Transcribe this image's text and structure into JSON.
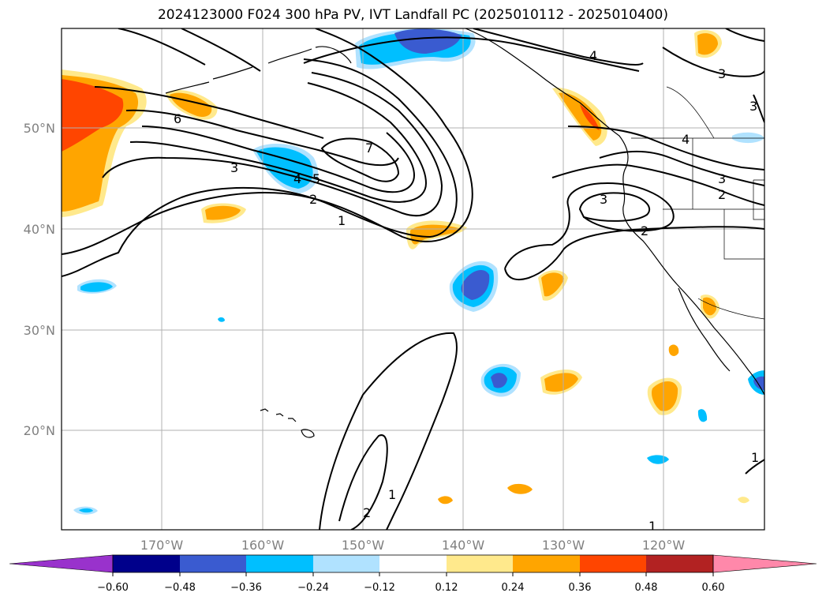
{
  "title": "2024123000 F024 300 hPa PV, IVT Landfall PC (2025010112 - 2025010400)",
  "axes": {
    "lon_labels": [
      "170°W",
      "160°W",
      "150°W",
      "140°W",
      "130°W",
      "120°W"
    ],
    "lat_labels": [
      "50°N",
      "40°N",
      "30°N",
      "20°N"
    ]
  },
  "colorbar": {
    "ticks": [
      "−0.60",
      "−0.48",
      "−0.36",
      "−0.24",
      "−0.12",
      "0.12",
      "0.24",
      "0.36",
      "0.48",
      "0.60"
    ],
    "colors": [
      "#9932cc",
      "#00008b",
      "#3a5bd0",
      "#00bfff",
      "#b0e2ff",
      "#ffffff",
      "#ffe98c",
      "#ffa500",
      "#ff4500",
      "#b22222",
      "#ff88aa"
    ]
  },
  "contour_labels": [
    "1",
    "2",
    "3",
    "4",
    "5",
    "6",
    "7",
    "4",
    "3",
    "3",
    "2",
    "4",
    "3",
    "2",
    "3",
    "2",
    "1",
    "1",
    "1"
  ]
}
